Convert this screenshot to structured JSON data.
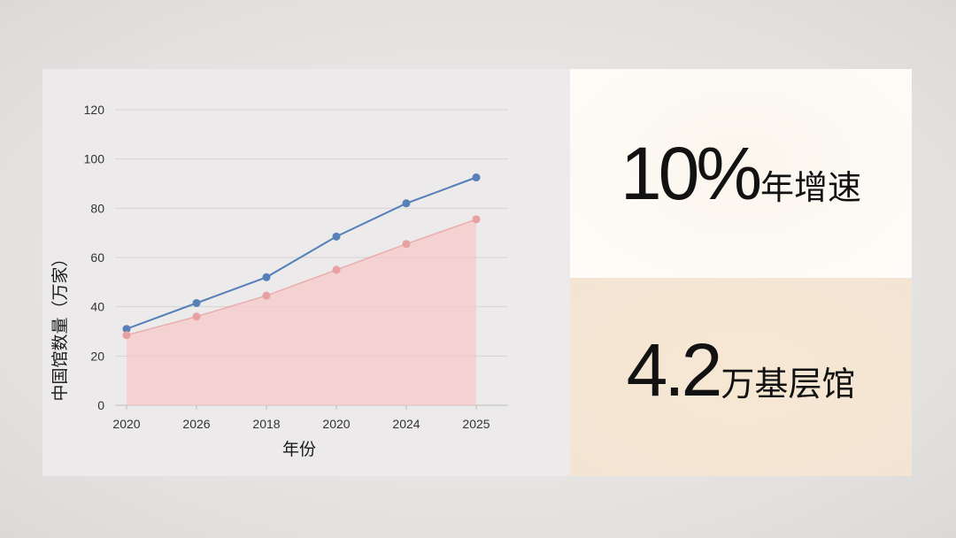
{
  "chart_data": {
    "type": "line",
    "categories": [
      "2020",
      "2026",
      "2018",
      "2020",
      "2024",
      "2025"
    ],
    "series": [
      {
        "values": [
          31,
          41.5,
          52,
          68.5,
          82,
          92.5
        ],
        "color": "#5580b8",
        "style": "line"
      },
      {
        "values": [
          28.5,
          36,
          44.5,
          55,
          65.5,
          75.5
        ],
        "color": "#e8a0a0",
        "style": "area",
        "fill": "#f7c9c8"
      }
    ],
    "xlabel": "年份",
    "ylabel": "中国馆数量（万家）",
    "ylim": [
      0,
      120
    ],
    "yticks": [
      0,
      20,
      40,
      60,
      80,
      100,
      120
    ],
    "grid": true
  },
  "stats": {
    "growth_value": "10%",
    "growth_label": "年增速",
    "grassroots_value": "4.2",
    "grassroots_label": "万基层馆"
  }
}
